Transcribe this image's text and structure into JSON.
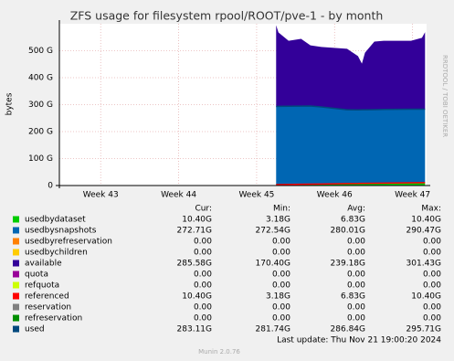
{
  "chart_data": {
    "type": "area",
    "title": "ZFS usage for filesystem rpool/ROOT/pve-1 - by month",
    "y_label": "bytes",
    "side_text": "RRDTOOL / TOBI OETIKER",
    "x": [
      45.25,
      45.28,
      45.41,
      45.57,
      45.69,
      45.83,
      46.16,
      46.3,
      46.35,
      46.39,
      46.51,
      46.63,
      46.98,
      47.12,
      47.16
    ],
    "xlim": [
      42.47,
      47.18
    ],
    "xticks": [
      {
        "value": 43,
        "label": "Week 43"
      },
      {
        "value": 44,
        "label": "Week 44"
      },
      {
        "value": 45,
        "label": "Week 45"
      },
      {
        "value": 46,
        "label": "Week 46"
      },
      {
        "value": 47,
        "label": "Week 47"
      }
    ],
    "ylim": [
      0,
      600
    ],
    "yticks": [
      0,
      {
        "value": 100,
        "label": "100 G"
      },
      {
        "value": 200,
        "label": "200 G"
      },
      {
        "value": 300,
        "label": "300 G"
      },
      {
        "value": 400,
        "label": "400 G"
      },
      {
        "value": 500,
        "label": "500 G"
      }
    ],
    "grid": true,
    "legend_columns": [
      "Cur:",
      "Min:",
      "Avg:",
      "Max:"
    ],
    "series": [
      {
        "name": "usedbydataset",
        "color": "#00cc00",
        "style": "stack",
        "stats": [
          "10.40G",
          "3.18G",
          "6.83G",
          "10.40G"
        ],
        "values": [
          3.2,
          3.5,
          4,
          4.5,
          5,
          5.5,
          7,
          7.5,
          8,
          8,
          8.5,
          9,
          10,
          10.4,
          10.4
        ]
      },
      {
        "name": "usedbysnapshots",
        "color": "#0066b3",
        "style": "stack",
        "stats": [
          "272.71G",
          "272.54G",
          "280.01G",
          "290.47G"
        ],
        "values": [
          290,
          290,
          290,
          290,
          290,
          286,
          274,
          273,
          273,
          273,
          273,
          273,
          273,
          272.7,
          272.7
        ]
      },
      {
        "name": "usedbyrefreservation",
        "color": "#ff8000",
        "stats": [
          "0.00",
          "0.00",
          "0.00",
          "0.00"
        ]
      },
      {
        "name": "usedbychildren",
        "color": "#ffcc00",
        "stats": [
          "0.00",
          "0.00",
          "0.00",
          "0.00"
        ]
      },
      {
        "name": "available",
        "color": "#330099",
        "style": "stack",
        "stats": [
          "285.58G",
          "170.40G",
          "239.18G",
          "301.43G"
        ],
        "values": [
          301.4,
          274.5,
          243,
          249.5,
          225,
          222.5,
          226,
          199.5,
          171,
          212,
          252.5,
          255,
          254,
          264.9,
          285.6
        ]
      },
      {
        "name": "quota",
        "color": "#990099",
        "stats": [
          "0.00",
          "0.00",
          "0.00",
          "0.00"
        ]
      },
      {
        "name": "refquota",
        "color": "#ccff00",
        "stats": [
          "0.00",
          "0.00",
          "0.00",
          "0.00"
        ]
      },
      {
        "name": "referenced",
        "color": "#ff0000",
        "style": "line",
        "stats": [
          "10.40G",
          "3.18G",
          "6.83G",
          "10.40G"
        ],
        "values": [
          3.2,
          3.5,
          4,
          4.5,
          5,
          5.5,
          7,
          7.5,
          8,
          8,
          8.5,
          9,
          10,
          10.4,
          10.4
        ]
      },
      {
        "name": "reservation",
        "color": "#808080",
        "stats": [
          "0.00",
          "0.00",
          "0.00",
          "0.00"
        ]
      },
      {
        "name": "refreservation",
        "color": "#008f00",
        "stats": [
          "0.00",
          "0.00",
          "0.00",
          "0.00"
        ]
      },
      {
        "name": "used",
        "color": "#00487d",
        "style": "line",
        "stats": [
          "283.11G",
          "281.74G",
          "286.84G",
          "295.71G"
        ],
        "values": [
          293.2,
          293.5,
          294,
          294.5,
          295,
          291.5,
          281,
          280.5,
          281,
          281,
          281.5,
          282,
          283,
          283.1,
          283.1
        ]
      }
    ],
    "footer": "Last update: Thu Nov 21 19:00:20 2024",
    "version": "Munin 2.0.76"
  }
}
